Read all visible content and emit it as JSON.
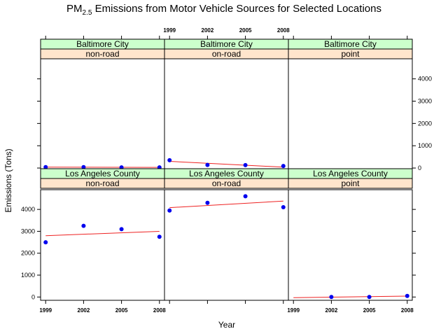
{
  "chart_data": {
    "type": "scatter",
    "title_main": "PM",
    "title_sub": "2.5",
    "title_rest": " Emissions from Motor Vehicle Sources for Selected Locations",
    "xlabel": "Year",
    "ylabel": "Emissions (Tons)",
    "x_ticks": [
      1999,
      2002,
      2005,
      2008
    ],
    "y_ticks": [
      0,
      1000,
      2000,
      3000,
      4000
    ],
    "xlim": [
      1998.6,
      2008.4
    ],
    "top_row_ylim": [
      -30,
      4900
    ],
    "bottom_row_ylim": [
      -150,
      4900
    ],
    "point_color": "#0000ee",
    "line_color": "#ee2222",
    "strip_city_color": "#ccffcc",
    "strip_type_color": "#ffe5cc",
    "panels": [
      {
        "city": "Baltimore City",
        "type": "non-road",
        "row": "top",
        "col": 0,
        "x": [
          1999,
          2002,
          2005,
          2008
        ],
        "y": [
          40,
          40,
          30,
          30
        ],
        "fit": [
          [
            1999,
            40
          ],
          [
            2008,
            30
          ]
        ]
      },
      {
        "city": "Baltimore City",
        "type": "on-road",
        "row": "top",
        "col": 1,
        "x": [
          1999,
          2002,
          2005,
          2008
        ],
        "y": [
          350,
          140,
          130,
          90
        ],
        "fit": [
          [
            1999,
            300
          ],
          [
            2008,
            40
          ]
        ]
      },
      {
        "city": "Baltimore City",
        "type": "point",
        "row": "top",
        "col": 2,
        "x": [],
        "y": [],
        "fit": []
      },
      {
        "city": "Los Angeles County",
        "type": "non-road",
        "row": "bottom",
        "col": 0,
        "x": [
          1999,
          2002,
          2005,
          2008
        ],
        "y": [
          2500,
          3250,
          3100,
          2750
        ],
        "fit": [
          [
            1999,
            2800
          ],
          [
            2008,
            3000
          ]
        ]
      },
      {
        "city": "Los Angeles County",
        "type": "on-road",
        "row": "bottom",
        "col": 1,
        "x": [
          1999,
          2002,
          2005,
          2008
        ],
        "y": [
          3950,
          4300,
          4600,
          4100
        ],
        "fit": [
          [
            1999,
            4080
          ],
          [
            2008,
            4380
          ]
        ]
      },
      {
        "city": "Los Angeles County",
        "type": "point",
        "row": "bottom",
        "col": 2,
        "x": [
          2002,
          2005,
          2008
        ],
        "y": [
          0,
          0,
          50
        ],
        "fit": [
          [
            1999,
            -30
          ],
          [
            2008,
            40
          ]
        ]
      }
    ]
  }
}
